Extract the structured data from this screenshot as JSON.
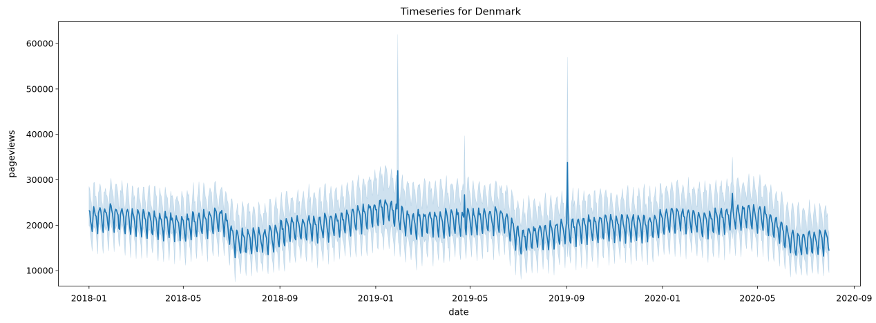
{
  "chart_data": {
    "type": "line",
    "title": "Timeseries for Denmark",
    "xlabel": "date",
    "ylabel": "pageviews",
    "x_start": "2018-01-01",
    "x_end": "2020-07-31",
    "xlim": [
      "2017-11-23",
      "2020-09-09"
    ],
    "ylim": [
      6600,
      64800
    ],
    "x_ticks": [
      {
        "date": "2018-01-01",
        "label": "2018-01"
      },
      {
        "date": "2018-05-01",
        "label": "2018-05"
      },
      {
        "date": "2018-09-01",
        "label": "2018-09"
      },
      {
        "date": "2019-01-01",
        "label": "2019-01"
      },
      {
        "date": "2019-05-01",
        "label": "2019-05"
      },
      {
        "date": "2019-09-01",
        "label": "2019-09"
      },
      {
        "date": "2020-01-01",
        "label": "2020-01"
      },
      {
        "date": "2020-05-01",
        "label": "2020-05"
      },
      {
        "date": "2020-09-01",
        "label": "2020-09"
      }
    ],
    "y_ticks": [
      {
        "value": 10000,
        "label": "10000"
      },
      {
        "value": 20000,
        "label": "20000"
      },
      {
        "value": 30000,
        "label": "30000"
      },
      {
        "value": 40000,
        "label": "40000"
      },
      {
        "value": 50000,
        "label": "50000"
      },
      {
        "value": 60000,
        "label": "60000"
      }
    ],
    "grid": false,
    "legend": "none",
    "series": [
      {
        "style": "mean line with shaded confidence band",
        "color": "#1f77b4",
        "band_color": "#1f77b4",
        "band_opacity": 0.22,
        "mean_trend": [
          {
            "date": "2018-01-01",
            "value": 21000
          },
          {
            "date": "2018-02-01",
            "value": 21800
          },
          {
            "date": "2018-03-15",
            "value": 20300
          },
          {
            "date": "2018-05-01",
            "value": 19600
          },
          {
            "date": "2018-06-20",
            "value": 21300
          },
          {
            "date": "2018-07-05",
            "value": 16200
          },
          {
            "date": "2018-08-15",
            "value": 16600
          },
          {
            "date": "2018-09-15",
            "value": 19300
          },
          {
            "date": "2018-11-01",
            "value": 19600
          },
          {
            "date": "2018-12-15",
            "value": 21600
          },
          {
            "date": "2019-01-15",
            "value": 23600
          },
          {
            "date": "2019-02-10",
            "value": 20400
          },
          {
            "date": "2019-04-01",
            "value": 20600
          },
          {
            "date": "2019-06-10",
            "value": 21200
          },
          {
            "date": "2019-07-05",
            "value": 16600
          },
          {
            "date": "2019-08-15",
            "value": 18200
          },
          {
            "date": "2019-10-15",
            "value": 19600
          },
          {
            "date": "2019-12-15",
            "value": 19600
          },
          {
            "date": "2020-01-15",
            "value": 21400
          },
          {
            "date": "2020-03-01",
            "value": 20400
          },
          {
            "date": "2020-04-10",
            "value": 22000
          },
          {
            "date": "2020-05-10",
            "value": 21200
          },
          {
            "date": "2020-06-20",
            "value": 15600
          },
          {
            "date": "2020-07-31",
            "value": 16600
          }
        ],
        "band_half_width": [
          {
            "date": "2018-01-01",
            "value": 4500
          },
          {
            "date": "2018-07-01",
            "value": 5000
          },
          {
            "date": "2018-12-01",
            "value": 5300
          },
          {
            "date": "2019-01-20",
            "value": 6800
          },
          {
            "date": "2019-06-01",
            "value": 5400
          },
          {
            "date": "2019-12-01",
            "value": 4800
          },
          {
            "date": "2020-04-01",
            "value": 5600
          },
          {
            "date": "2020-07-31",
            "value": 4800
          }
        ],
        "spikes": [
          {
            "date": "2019-01-29",
            "mean": 32000,
            "upper": 62000,
            "lower": 19500
          },
          {
            "date": "2019-04-24",
            "mean": 26700,
            "upper": 39700,
            "lower": 17000
          },
          {
            "date": "2019-09-02",
            "mean": 33800,
            "upper": 57000,
            "lower": 13000
          },
          {
            "date": "2020-03-30",
            "mean": 27000,
            "upper": 35000,
            "lower": 17000
          }
        ],
        "weekly_amplitude": 2400
      }
    ]
  }
}
